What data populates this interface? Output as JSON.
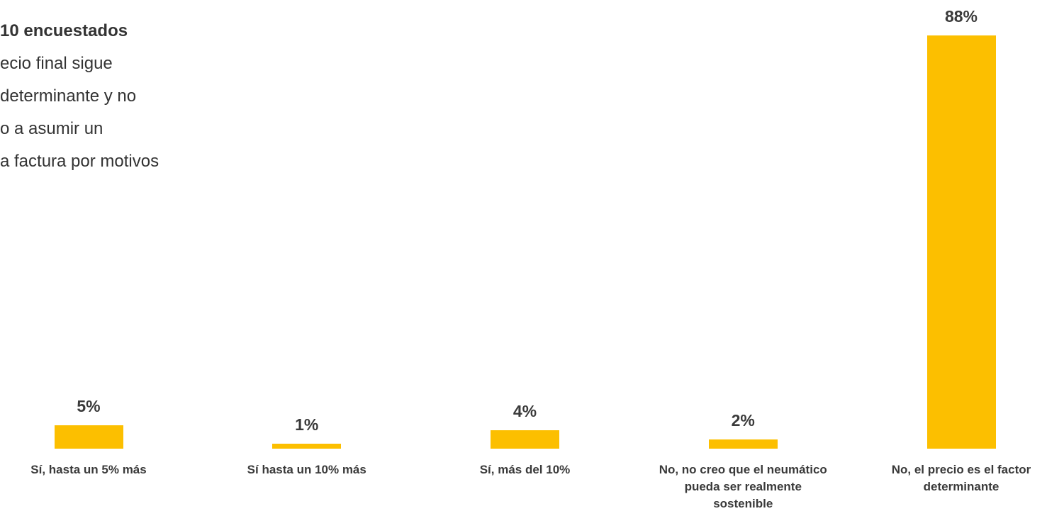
{
  "chart_data": {
    "type": "bar",
    "annotation_title": "10 encuestados",
    "annotation_lines": [
      "ecio final sigue",
      "determinante y no",
      "o a asumir un",
      "a factura por motivos"
    ],
    "categories": [
      "Sí, hasta un 5% más",
      "Sí hasta un 10% más",
      "Sí, más del 10%",
      "No, no creo que el neumático pueda ser realmente sostenible",
      "No, el precio es el factor determinante"
    ],
    "values": [
      5,
      1,
      4,
      2,
      88
    ],
    "value_labels": [
      "5%",
      "1%",
      "4%",
      "2%",
      "88%"
    ],
    "color": "#fcbf00"
  }
}
